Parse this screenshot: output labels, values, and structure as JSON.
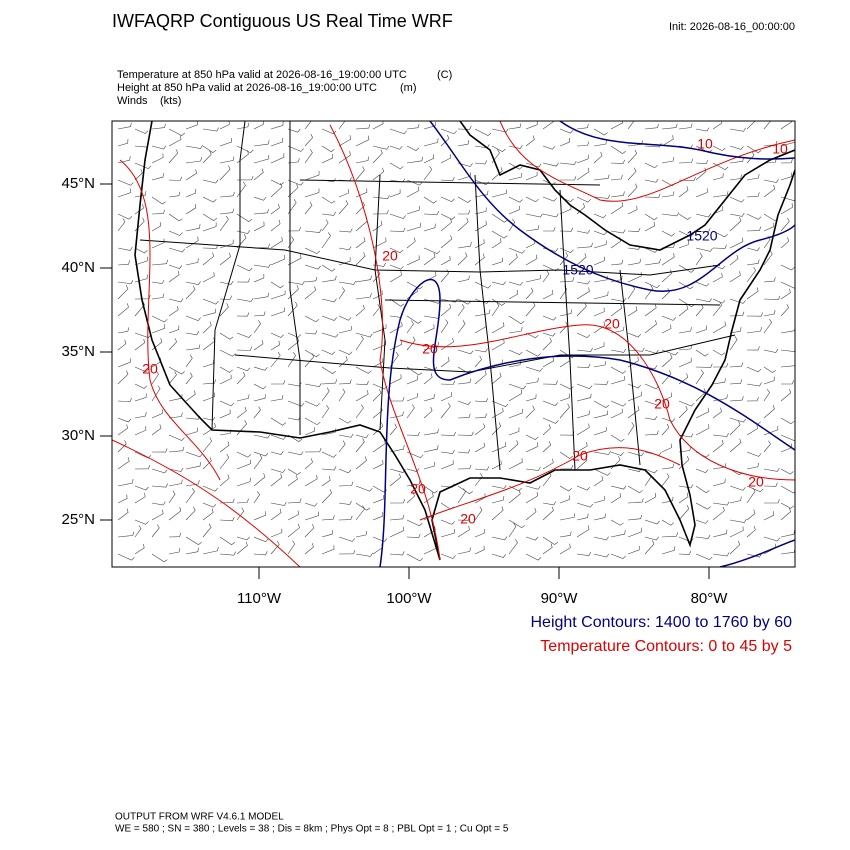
{
  "header": {
    "title": "IWFAQRP Contiguous US Real Time WRF",
    "init": "Init: 2026-08-16_00:00:00"
  },
  "fields": [
    {
      "name": "Temperature at 850 hPa valid at 2026-08-16_19:00:00 UTC",
      "units": "(C)"
    },
    {
      "name": "Height at 850 hPa valid at 2026-08-16_19:00:00 UTC",
      "units": "(m)"
    },
    {
      "name": "Winds",
      "units": "(kts)"
    }
  ],
  "map": {
    "lat_ticks": [
      {
        "value": 45,
        "label": "45°N"
      },
      {
        "value": 40,
        "label": "40°N"
      },
      {
        "value": 35,
        "label": "35°N"
      },
      {
        "value": 30,
        "label": "30°N"
      },
      {
        "value": 25,
        "label": "25°N"
      }
    ],
    "lon_ticks": [
      {
        "value": -110,
        "label": "110°W"
      },
      {
        "value": -100,
        "label": "100°W"
      },
      {
        "value": -90,
        "label": "90°W"
      },
      {
        "value": -80,
        "label": "80°W"
      }
    ],
    "contour_labels": [
      "10",
      "10",
      "20",
      "20",
      "20",
      "20",
      "20",
      "20",
      "20",
      "20",
      "20",
      "1520",
      "1520"
    ]
  },
  "legend": [
    "Height Contours: 1400 to 1760 by 60",
    "Temperature Contours: 0 to 45 by 5"
  ],
  "footer": [
    "OUTPUT FROM WRF V4.6.1 MODEL",
    "WE = 580 ; SN = 380 ; Levels = 38 ; Dis = 8km ; Phys Opt = 8 ; PBL Opt = 1 ; Cu Opt = 5"
  ]
}
